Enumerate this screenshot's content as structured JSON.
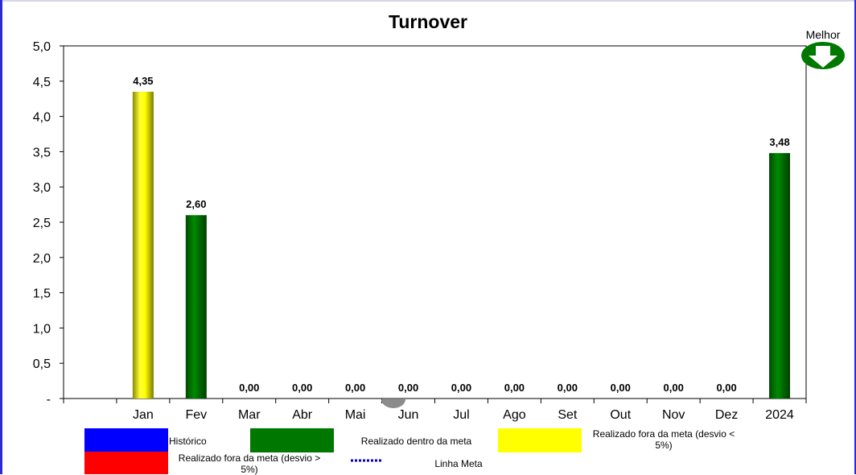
{
  "chart_data": {
    "type": "bar",
    "title": "Turnover",
    "categories": [
      "Jan",
      "Fev",
      "Mar",
      "Abr",
      "Mai",
      "Jun",
      "Jul",
      "Ago",
      "Set",
      "Out",
      "Nov",
      "Dez",
      "2024"
    ],
    "values": [
      4.35,
      2.6,
      0.0,
      0.0,
      0.0,
      0.0,
      0.0,
      0.0,
      0.0,
      0.0,
      0.0,
      0.0,
      3.48
    ],
    "data_labels": [
      "4,35",
      "2,60",
      "0,00",
      "0,00",
      "0,00",
      "0,00",
      "0,00",
      "0,00",
      "0,00",
      "0,00",
      "0,00",
      "0,00",
      "3,48"
    ],
    "bar_status": [
      "fora_menor",
      "dentro",
      "",
      "",
      "",
      "",
      "",
      "",
      "",
      "",
      "",
      "",
      "dentro"
    ],
    "ylim": [
      0,
      5
    ],
    "y_ticks": [
      0,
      0.5,
      1.0,
      1.5,
      2.0,
      2.5,
      3.0,
      3.5,
      4.0,
      4.5,
      5.0
    ],
    "y_tick_labels": [
      "-",
      "0,5",
      "1,0",
      "1,5",
      "2,0",
      "2,5",
      "3,0",
      "3,5",
      "4,0",
      "4,5",
      "5,0"
    ],
    "xlabel": "",
    "ylabel": "",
    "grid": false,
    "legend_position": "bottom"
  },
  "colors": {
    "historico": "#0000ff",
    "dentro": "#007800",
    "fora_menor": "#ffff00",
    "fora_maior": "#ff0000",
    "linha_meta": "#0000cc",
    "frame": "#2b2bd6"
  },
  "legend": {
    "historico": "Histórico",
    "dentro": "Realizado dentro da meta",
    "fora_menor": "Realizado fora da meta (desvio < 5%)",
    "fora_maior": "Realizado fora da meta (desvio > 5%)",
    "linha_meta": "Linha Meta"
  },
  "better_indicator": {
    "label": "Melhor",
    "icon": "arrow-down-icon"
  }
}
